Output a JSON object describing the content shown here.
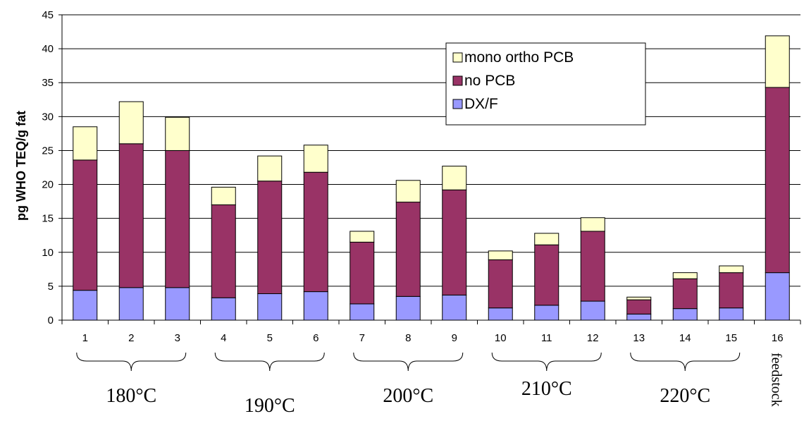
{
  "chart_data": {
    "type": "bar",
    "stacked": true,
    "title": "",
    "xlabel": "",
    "ylabel": "pg WHO TEQ/g fat",
    "ylim": [
      0,
      45
    ],
    "yticks": [
      0,
      5,
      10,
      15,
      20,
      25,
      30,
      35,
      40,
      45
    ],
    "grid": true,
    "legend_position": "top-right",
    "categories": [
      "1",
      "2",
      "3",
      "4",
      "5",
      "6",
      "7",
      "8",
      "9",
      "10",
      "11",
      "12",
      "13",
      "14",
      "15",
      "16"
    ],
    "series": [
      {
        "name": "DX/F",
        "color": "#9999ff",
        "values": [
          4.4,
          4.8,
          4.8,
          3.3,
          3.9,
          4.2,
          2.4,
          3.5,
          3.7,
          1.8,
          2.2,
          2.8,
          0.9,
          1.7,
          1.8,
          7.0
        ]
      },
      {
        "name": "no PCB",
        "color": "#993366",
        "values": [
          19.2,
          21.2,
          20.2,
          13.7,
          16.6,
          17.6,
          9.1,
          13.9,
          15.5,
          7.1,
          8.9,
          10.3,
          2.1,
          4.4,
          5.2,
          27.3
        ]
      },
      {
        "name": "mono ortho PCB",
        "color": "#ffffcc",
        "values": [
          4.9,
          6.2,
          4.9,
          2.6,
          3.7,
          4.0,
          1.6,
          3.2,
          3.5,
          1.3,
          1.7,
          2.0,
          0.4,
          0.9,
          1.0,
          7.6
        ]
      }
    ],
    "legend_order": [
      "mono ortho PCB",
      "no PCB",
      "DX/F"
    ],
    "groups": [
      {
        "label": "180°C",
        "from": 0,
        "to": 2
      },
      {
        "label": "190°C",
        "from": 3,
        "to": 5
      },
      {
        "label": "200°C",
        "from": 6,
        "to": 8
      },
      {
        "label": "210°C",
        "from": 9,
        "to": 11
      },
      {
        "label": "220°C",
        "from": 12,
        "to": 14
      }
    ],
    "annotations": [
      {
        "category": "16",
        "text": "feedstock"
      }
    ]
  }
}
